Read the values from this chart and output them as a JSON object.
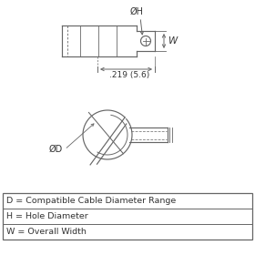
{
  "bg_color": "#ffffff",
  "line_color": "#666666",
  "text_color": "#333333",
  "legend_lines": [
    "D = Compatible Cable Diameter Range",
    "H = Hole Diameter",
    "W = Overall Width"
  ],
  "dim_label": ".219 (5.6)",
  "label_H": "ØH",
  "label_W": "W",
  "label_D": "ØD"
}
